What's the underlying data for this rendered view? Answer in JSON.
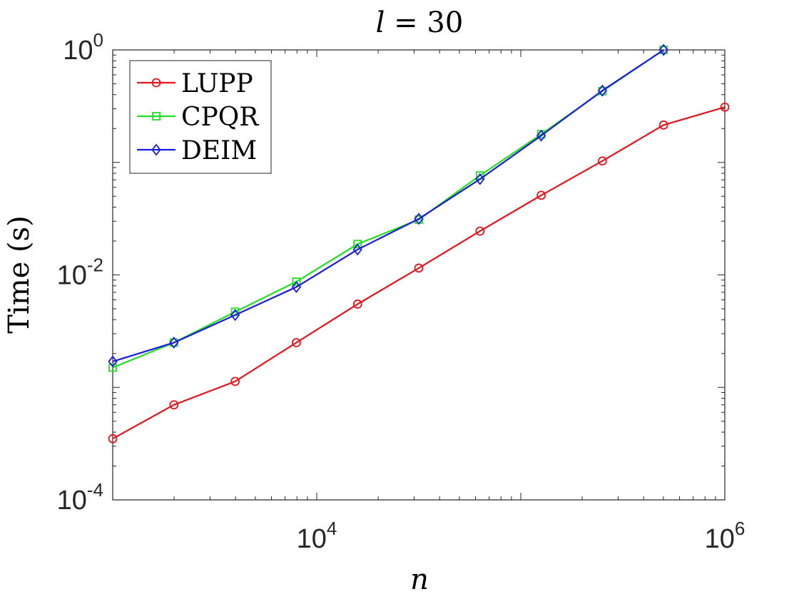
{
  "chart_data": {
    "type": "line",
    "title": "l = 30",
    "title_var": "l",
    "title_rest": " = 30",
    "xlabel": "n",
    "ylabel": "Time (s)",
    "xscale": "log",
    "yscale": "log",
    "xlim": [
      1000,
      1000000
    ],
    "ylim": [
      0.0001,
      1
    ],
    "x_ticks": [
      {
        "value": 10000,
        "base": "10",
        "exp": "4"
      },
      {
        "value": 1000000,
        "base": "10",
        "exp": "6"
      }
    ],
    "y_ticks": [
      {
        "value": 0.0001,
        "base": "10",
        "exp": "-4"
      },
      {
        "value": 0.01,
        "base": "10",
        "exp": "-2"
      },
      {
        "value": 1,
        "base": "10",
        "exp": "0"
      }
    ],
    "grid": false,
    "legend_position": "top-left",
    "x": [
      1000,
      1995,
      3981,
      7943,
      15849,
      31623,
      63096,
      125893,
      251189,
      501187,
      1000000
    ],
    "series": [
      {
        "name": "LUPP",
        "color": "#e8141c",
        "marker": "circle",
        "values": [
          0.00035,
          0.0007,
          0.00113,
          0.0025,
          0.0055,
          0.0115,
          0.0245,
          0.051,
          0.103,
          0.215,
          0.31
        ]
      },
      {
        "name": "CPQR",
        "color": "#22e022",
        "marker": "square",
        "values": [
          0.0015,
          0.0025,
          0.0047,
          0.0087,
          0.0188,
          0.031,
          0.0765,
          0.178,
          0.43,
          1.0,
          0.0
        ]
      },
      {
        "name": "DEIM",
        "color": "#1a1ae0",
        "marker": "diamond",
        "values": [
          0.0017,
          0.0025,
          0.0044,
          0.0078,
          0.0168,
          0.0315,
          0.071,
          0.173,
          0.435,
          1.0,
          0.0
        ]
      }
    ]
  }
}
